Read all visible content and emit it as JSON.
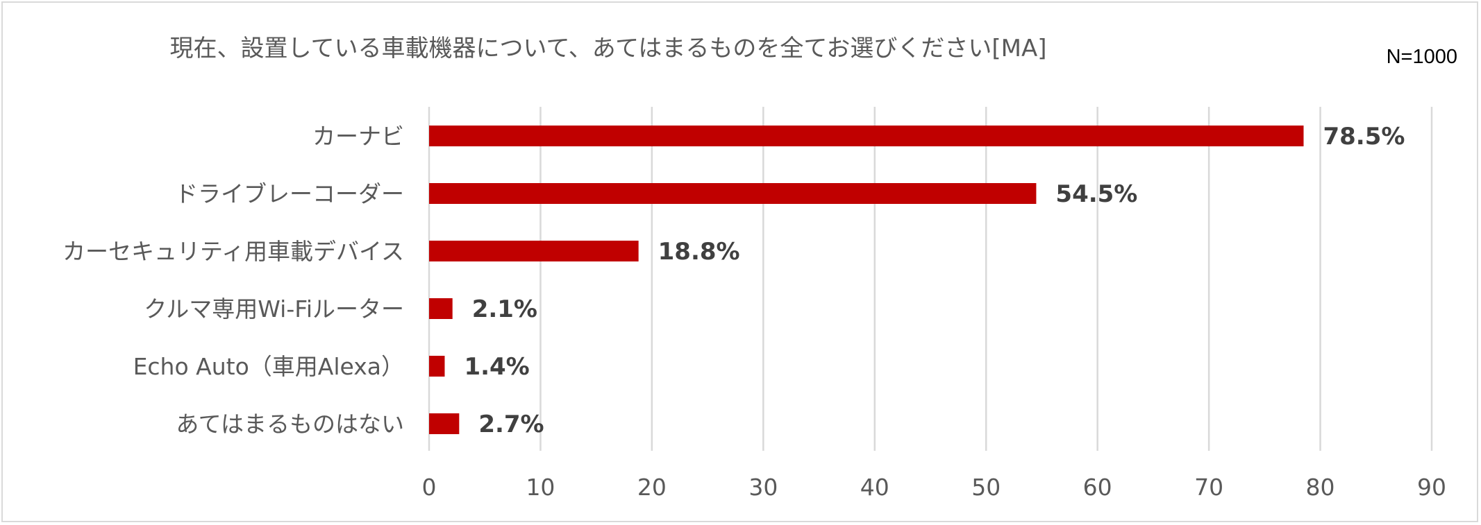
{
  "chart_title": "現在、設置している車載機器について、あてはまるものを全てお選びください[MA]",
  "sample_size": "N=1000",
  "chart_data": {
    "type": "bar",
    "orientation": "horizontal",
    "title": "現在、設置している車載機器について、あてはまるものを全てお選びください[MA]",
    "xlabel": "",
    "ylabel": "",
    "xlim": [
      0,
      90
    ],
    "x_ticks": [
      0,
      10,
      20,
      30,
      40,
      50,
      60,
      70,
      80,
      90
    ],
    "x_tick_labels": [
      "0",
      "10",
      "20",
      "30",
      "40",
      "50",
      "60",
      "70",
      "80",
      "90"
    ],
    "grid": true,
    "legend": "none",
    "bar_color": "#c00000",
    "categories": [
      "カーナビ",
      "ドライブレーコーダー",
      "カーセキュリティ用車載デバイス",
      "クルマ専用Wi-Fiルーター",
      "Echo Auto（車用Alexa）",
      "あてはまるものはない"
    ],
    "values": [
      78.5,
      54.5,
      18.8,
      2.1,
      1.4,
      2.7
    ],
    "value_labels": [
      "78.5%",
      "54.5%",
      "18.8%",
      "2.1%",
      "1.4%",
      "2.7%"
    ]
  }
}
